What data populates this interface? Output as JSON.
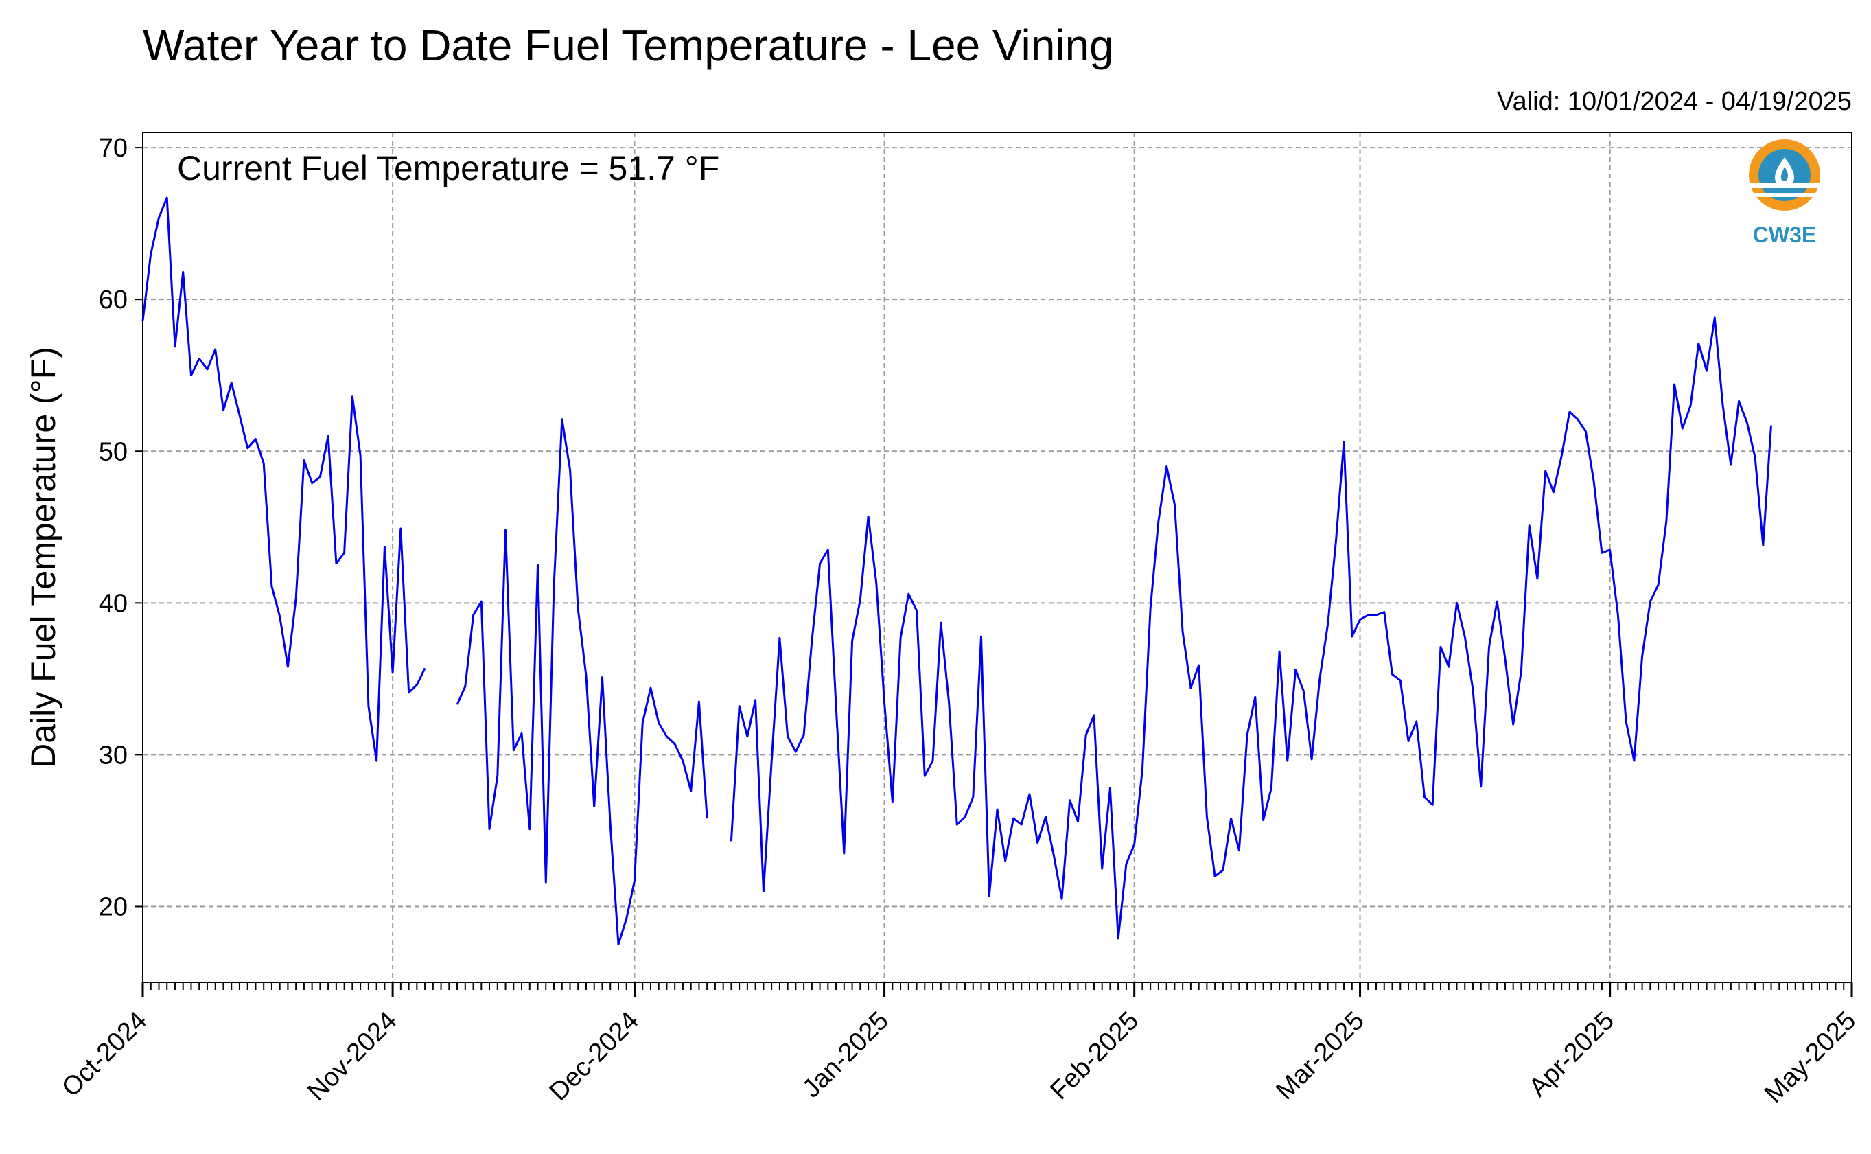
{
  "chart_data": {
    "type": "line",
    "title": "Water Year to Date Fuel Temperature - Lee Vining",
    "subtitle": "Valid: 10/01/2024 - 04/19/2025",
    "annotation": "Current Fuel Temperature = 51.7 °F",
    "ylabel": "Daily Fuel Temperature (°F)",
    "xlabel": "",
    "ylim": [
      15,
      71
    ],
    "xlim": [
      "2024-10-01",
      "2025-05-01"
    ],
    "yticks": [
      20,
      30,
      40,
      50,
      60,
      70
    ],
    "xticks": [
      {
        "date": "2024-10-01",
        "label": "Oct-2024"
      },
      {
        "date": "2024-11-01",
        "label": "Nov-2024"
      },
      {
        "date": "2024-12-01",
        "label": "Dec-2024"
      },
      {
        "date": "2025-01-01",
        "label": "Jan-2025"
      },
      {
        "date": "2025-02-01",
        "label": "Feb-2025"
      },
      {
        "date": "2025-03-01",
        "label": "Mar-2025"
      },
      {
        "date": "2025-04-01",
        "label": "Apr-2025"
      },
      {
        "date": "2025-05-01",
        "label": "May-2025"
      }
    ],
    "grid": true,
    "line_color": "#0000ee",
    "series": [
      {
        "start_date": "2024-10-01",
        "values": [
          58.6,
          63.0,
          65.4,
          66.7,
          56.9,
          61.8,
          55.0,
          56.1,
          55.4,
          56.7,
          52.7,
          54.5,
          52.4,
          50.2,
          50.8,
          49.2,
          41.1,
          39.1,
          35.8,
          40.3,
          49.4,
          47.9,
          48.3,
          51.0,
          42.6,
          43.3,
          53.6,
          49.7,
          33.2,
          29.6,
          43.7,
          35.4,
          44.9,
          34.1,
          34.6,
          35.7,
          null,
          null,
          null,
          33.3,
          34.5,
          39.2,
          40.1,
          25.1,
          28.6,
          44.8,
          30.3,
          31.4,
          25.1,
          42.5,
          21.6,
          41.1,
          52.1,
          48.8,
          39.6,
          35.2,
          26.6,
          35.1,
          25.4,
          17.5,
          19.2,
          21.7,
          32.1,
          34.4,
          32.1,
          31.2,
          30.7,
          29.6,
          27.6,
          33.5,
          25.8,
          null,
          null,
          24.3,
          33.2,
          31.2,
          33.6,
          21.0,
          29.5,
          37.7,
          31.2,
          30.2,
          31.3,
          37.5,
          42.6,
          43.5,
          33.2,
          23.5,
          37.5,
          40.2,
          45.7,
          41.3,
          33.4,
          26.9,
          37.7,
          40.6,
          39.5,
          28.6,
          29.6,
          38.7,
          33.5,
          25.4,
          25.9,
          27.2,
          37.8,
          20.7,
          26.4,
          23.0,
          25.8,
          25.4,
          27.4,
          24.2,
          25.9,
          23.4,
          20.5,
          27.0,
          25.6,
          31.3,
          32.6,
          22.5,
          27.8,
          17.9,
          22.8,
          24.1,
          29.0,
          39.7,
          45.4,
          49.0,
          46.5,
          38.1,
          34.4,
          35.9,
          25.9,
          22.0,
          22.4,
          25.8,
          23.7,
          31.3,
          33.8,
          25.7,
          27.8,
          36.8,
          29.6,
          35.6,
          34.2,
          29.7,
          35.0,
          38.6,
          44.0,
          50.6,
          37.8,
          38.9,
          39.2,
          39.2,
          39.4,
          35.3,
          34.9,
          30.9,
          32.2,
          27.2,
          26.7,
          37.1,
          35.8,
          40.0,
          37.8,
          34.3,
          27.9,
          37.1,
          40.1,
          36.3,
          32.0,
          35.5,
          45.1,
          41.6,
          48.7,
          47.3,
          49.7,
          52.6,
          52.1,
          51.3,
          48.0,
          43.3,
          43.5,
          39.2,
          32.2,
          29.6,
          36.5,
          40.1,
          41.2,
          45.4,
          54.4,
          51.5,
          53.0,
          57.1,
          55.3,
          58.8,
          53.0,
          49.1,
          53.3,
          51.9,
          49.6,
          43.8,
          51.7
        ]
      }
    ]
  },
  "logo": {
    "text": "CW3E",
    "icon": "cw3e-water-drop-logo",
    "color": "#2b90c0",
    "accent": "#f39a1e"
  }
}
